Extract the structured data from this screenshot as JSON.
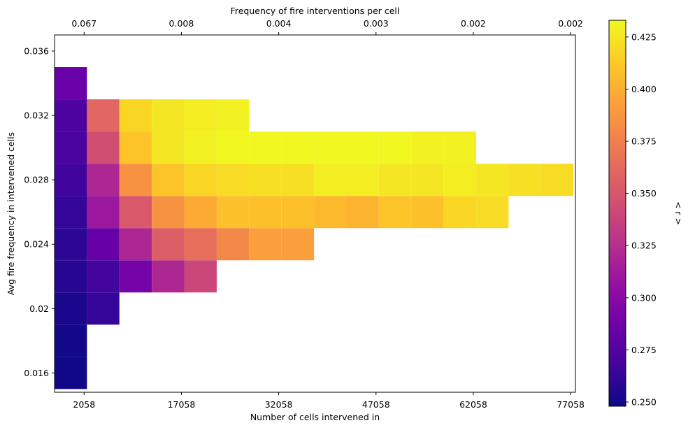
{
  "chart_data": {
    "type": "heatmap",
    "xlabel": "Number of cells intervened in",
    "ylabel": "Avg fire frequency in intervened cells",
    "top_xlabel": "Frequency of fire interventions per cell",
    "colorbar_label": "< r >",
    "colormap": "plasma",
    "x_tick_labels": [
      "2058",
      "17058",
      "32058",
      "47058",
      "62058",
      "77058"
    ],
    "x_tick_values": [
      2058,
      17058,
      32058,
      47058,
      62058,
      77058
    ],
    "top_tick_labels": [
      "0.067",
      "0.008",
      "0.004",
      "0.003",
      "0.002",
      "0.002"
    ],
    "y_tick_labels": [
      "0.016",
      "0.02",
      "0.024",
      "0.028",
      "0.032",
      "0.036"
    ],
    "y_tick_values": [
      0.016,
      0.02,
      0.024,
      0.028,
      0.032,
      0.036
    ],
    "xlim": [
      -2500,
      77800
    ],
    "ylim": [
      0.0148,
      0.037
    ],
    "x_bin_width": 5000,
    "x_bin_starts": [
      -2500,
      2500,
      7500,
      12500,
      17500,
      22500,
      27500,
      32500,
      37500,
      42500,
      47500,
      52500,
      57500,
      62500,
      67500,
      72500
    ],
    "y_bin_height": 0.002,
    "y_bin_starts": [
      0.015,
      0.017,
      0.019,
      0.021,
      0.023,
      0.025,
      0.027,
      0.029,
      0.031,
      0.033
    ],
    "colorbar_range": [
      0.248,
      0.433
    ],
    "colorbar_ticks": [
      "0.250",
      "0.275",
      "0.300",
      "0.325",
      "0.350",
      "0.375",
      "0.400",
      "0.425"
    ],
    "colorbar_tick_values": [
      0.25,
      0.275,
      0.3,
      0.325,
      0.35,
      0.375,
      0.4,
      0.425
    ],
    "grid": false,
    "rows": [
      [
        0.249,
        null,
        null,
        null,
        null,
        null,
        null,
        null,
        null,
        null,
        null,
        null,
        null,
        null,
        null,
        null
      ],
      [
        0.25,
        null,
        null,
        null,
        null,
        null,
        null,
        null,
        null,
        null,
        null,
        null,
        null,
        null,
        null,
        null
      ],
      [
        0.253,
        0.262,
        null,
        null,
        null,
        null,
        null,
        null,
        null,
        null,
        null,
        null,
        null,
        null,
        null,
        null
      ],
      [
        0.257,
        0.268,
        0.29,
        0.32,
        0.34,
        null,
        null,
        null,
        null,
        null,
        null,
        null,
        null,
        null,
        null,
        null
      ],
      [
        0.259,
        0.283,
        0.32,
        0.355,
        0.365,
        0.38,
        0.392,
        0.392,
        null,
        null,
        null,
        null,
        null,
        null,
        null,
        null
      ],
      [
        0.262,
        0.31,
        0.352,
        0.385,
        0.398,
        0.408,
        0.408,
        0.408,
        0.405,
        0.402,
        0.41,
        0.408,
        0.418,
        0.42,
        null,
        null
      ],
      [
        0.266,
        0.32,
        0.385,
        0.41,
        0.418,
        0.42,
        0.422,
        0.422,
        0.428,
        0.428,
        0.425,
        0.425,
        0.428,
        0.425,
        0.422,
        0.42
      ],
      [
        0.27,
        0.345,
        0.41,
        0.425,
        0.43,
        0.432,
        0.432,
        0.432,
        0.432,
        0.432,
        0.432,
        0.43,
        0.43,
        null,
        null,
        null
      ],
      [
        0.272,
        0.36,
        0.418,
        0.425,
        0.428,
        0.43,
        null,
        null,
        null,
        null,
        null,
        null,
        null,
        null,
        null,
        null
      ],
      [
        0.285,
        null,
        null,
        null,
        null,
        null,
        null,
        null,
        null,
        null,
        null,
        null,
        null,
        null,
        null,
        null
      ]
    ]
  }
}
